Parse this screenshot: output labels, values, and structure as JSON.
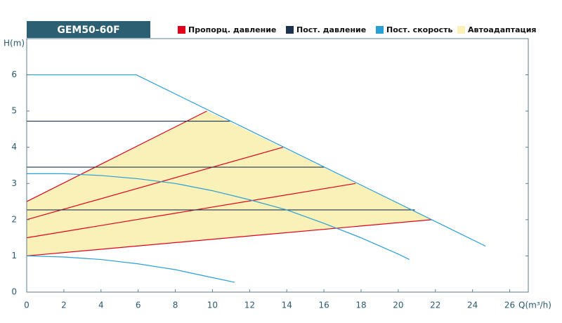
{
  "chart_data": {
    "type": "line",
    "title": "GEM50-60F",
    "xlabel": "Q(m³/h)",
    "ylabel": "H(m)",
    "xlim": [
      0,
      27
    ],
    "ylim": [
      0,
      7
    ],
    "xticks": [
      0,
      2,
      4,
      6,
      8,
      10,
      12,
      14,
      16,
      18,
      20,
      22,
      24,
      26
    ],
    "yticks": [
      0,
      1,
      2,
      3,
      4,
      5,
      6
    ],
    "series": [
      {
        "name": "Автоадаптация",
        "color": "#f9f1b8",
        "fill": true,
        "lines": [
          {
            "x": [
              0,
              9.7,
              21.8,
              0
            ],
            "values": [
              2.5,
              5,
              2,
              1
            ]
          }
        ]
      },
      {
        "name": "Пропорц. давление",
        "color": "#e3001b",
        "lines": [
          {
            "x": [
              0,
              21.8
            ],
            "values": [
              1,
              2
            ]
          },
          {
            "x": [
              0,
              17.7
            ],
            "values": [
              1.5,
              3
            ]
          },
          {
            "x": [
              0,
              13.8
            ],
            "values": [
              2,
              4
            ]
          },
          {
            "x": [
              0,
              9.7
            ],
            "values": [
              2.5,
              5
            ]
          }
        ]
      },
      {
        "name": "Пост. давление",
        "color": "#1f3350",
        "lines": [
          {
            "x": [
              0,
              11
            ],
            "values": [
              4.72,
              4.72
            ]
          },
          {
            "x": [
              0,
              16
            ],
            "values": [
              3.45,
              3.45
            ]
          },
          {
            "x": [
              0,
              20.9
            ],
            "values": [
              2.27,
              2.27
            ]
          }
        ]
      },
      {
        "name": "Пост. скорость",
        "color": "#2a9fd6",
        "lines": [
          {
            "x": [
              0,
              5.9,
              24.7
            ],
            "values": [
              6,
              6,
              1.27
            ]
          },
          {
            "x": [
              0,
              2,
              4,
              6,
              8,
              10,
              12,
              14,
              16,
              18,
              20,
              20.6
            ],
            "values": [
              3.27,
              3.27,
              3.22,
              3.13,
              3.0,
              2.8,
              2.55,
              2.27,
              1.9,
              1.5,
              1.05,
              0.9
            ]
          },
          {
            "x": [
              0,
              2,
              4,
              6,
              8,
              10,
              11.2
            ],
            "values": [
              1,
              0.97,
              0.9,
              0.78,
              0.62,
              0.4,
              0.27
            ]
          }
        ]
      }
    ]
  }
}
